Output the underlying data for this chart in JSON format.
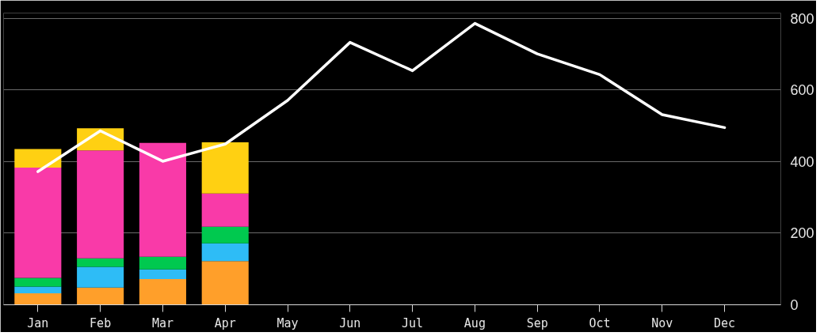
{
  "chart_data": {
    "type": "bar",
    "stacked": true,
    "categories": [
      "Jan",
      "Feb",
      "Mar",
      "Apr",
      "May",
      "Jun",
      "Jul",
      "Aug",
      "Sep",
      "Oct",
      "Nov",
      "Dec"
    ],
    "series": [
      {
        "color": "#ff9f2a",
        "values": [
          32,
          48,
          72,
          122,
          null,
          null,
          null,
          null,
          null,
          null,
          null,
          null
        ]
      },
      {
        "color": "#2ebcf6",
        "values": [
          19,
          58,
          27,
          50,
          null,
          null,
          null,
          null,
          null,
          null,
          null,
          null
        ]
      },
      {
        "color": "#00c94f",
        "values": [
          24,
          24,
          35,
          46,
          null,
          null,
          null,
          null,
          null,
          null,
          null,
          null
        ]
      },
      {
        "color": "#f93aa8",
        "values": [
          308,
          301,
          318,
          93,
          null,
          null,
          null,
          null,
          null,
          null,
          null,
          null
        ]
      },
      {
        "color": "#ffd012",
        "values": [
          52,
          62,
          null,
          143,
          null,
          null,
          null,
          null,
          null,
          null,
          null,
          null
        ]
      },
      {
        "type": "line",
        "color": "#ffffff",
        "values": [
          372,
          486,
          401,
          449,
          571,
          733,
          654,
          786,
          701,
          643,
          531,
          495
        ]
      }
    ],
    "ylim": [
      0,
      815
    ],
    "yticks": [
      0,
      200,
      400,
      600,
      800
    ],
    "grid": "y"
  }
}
